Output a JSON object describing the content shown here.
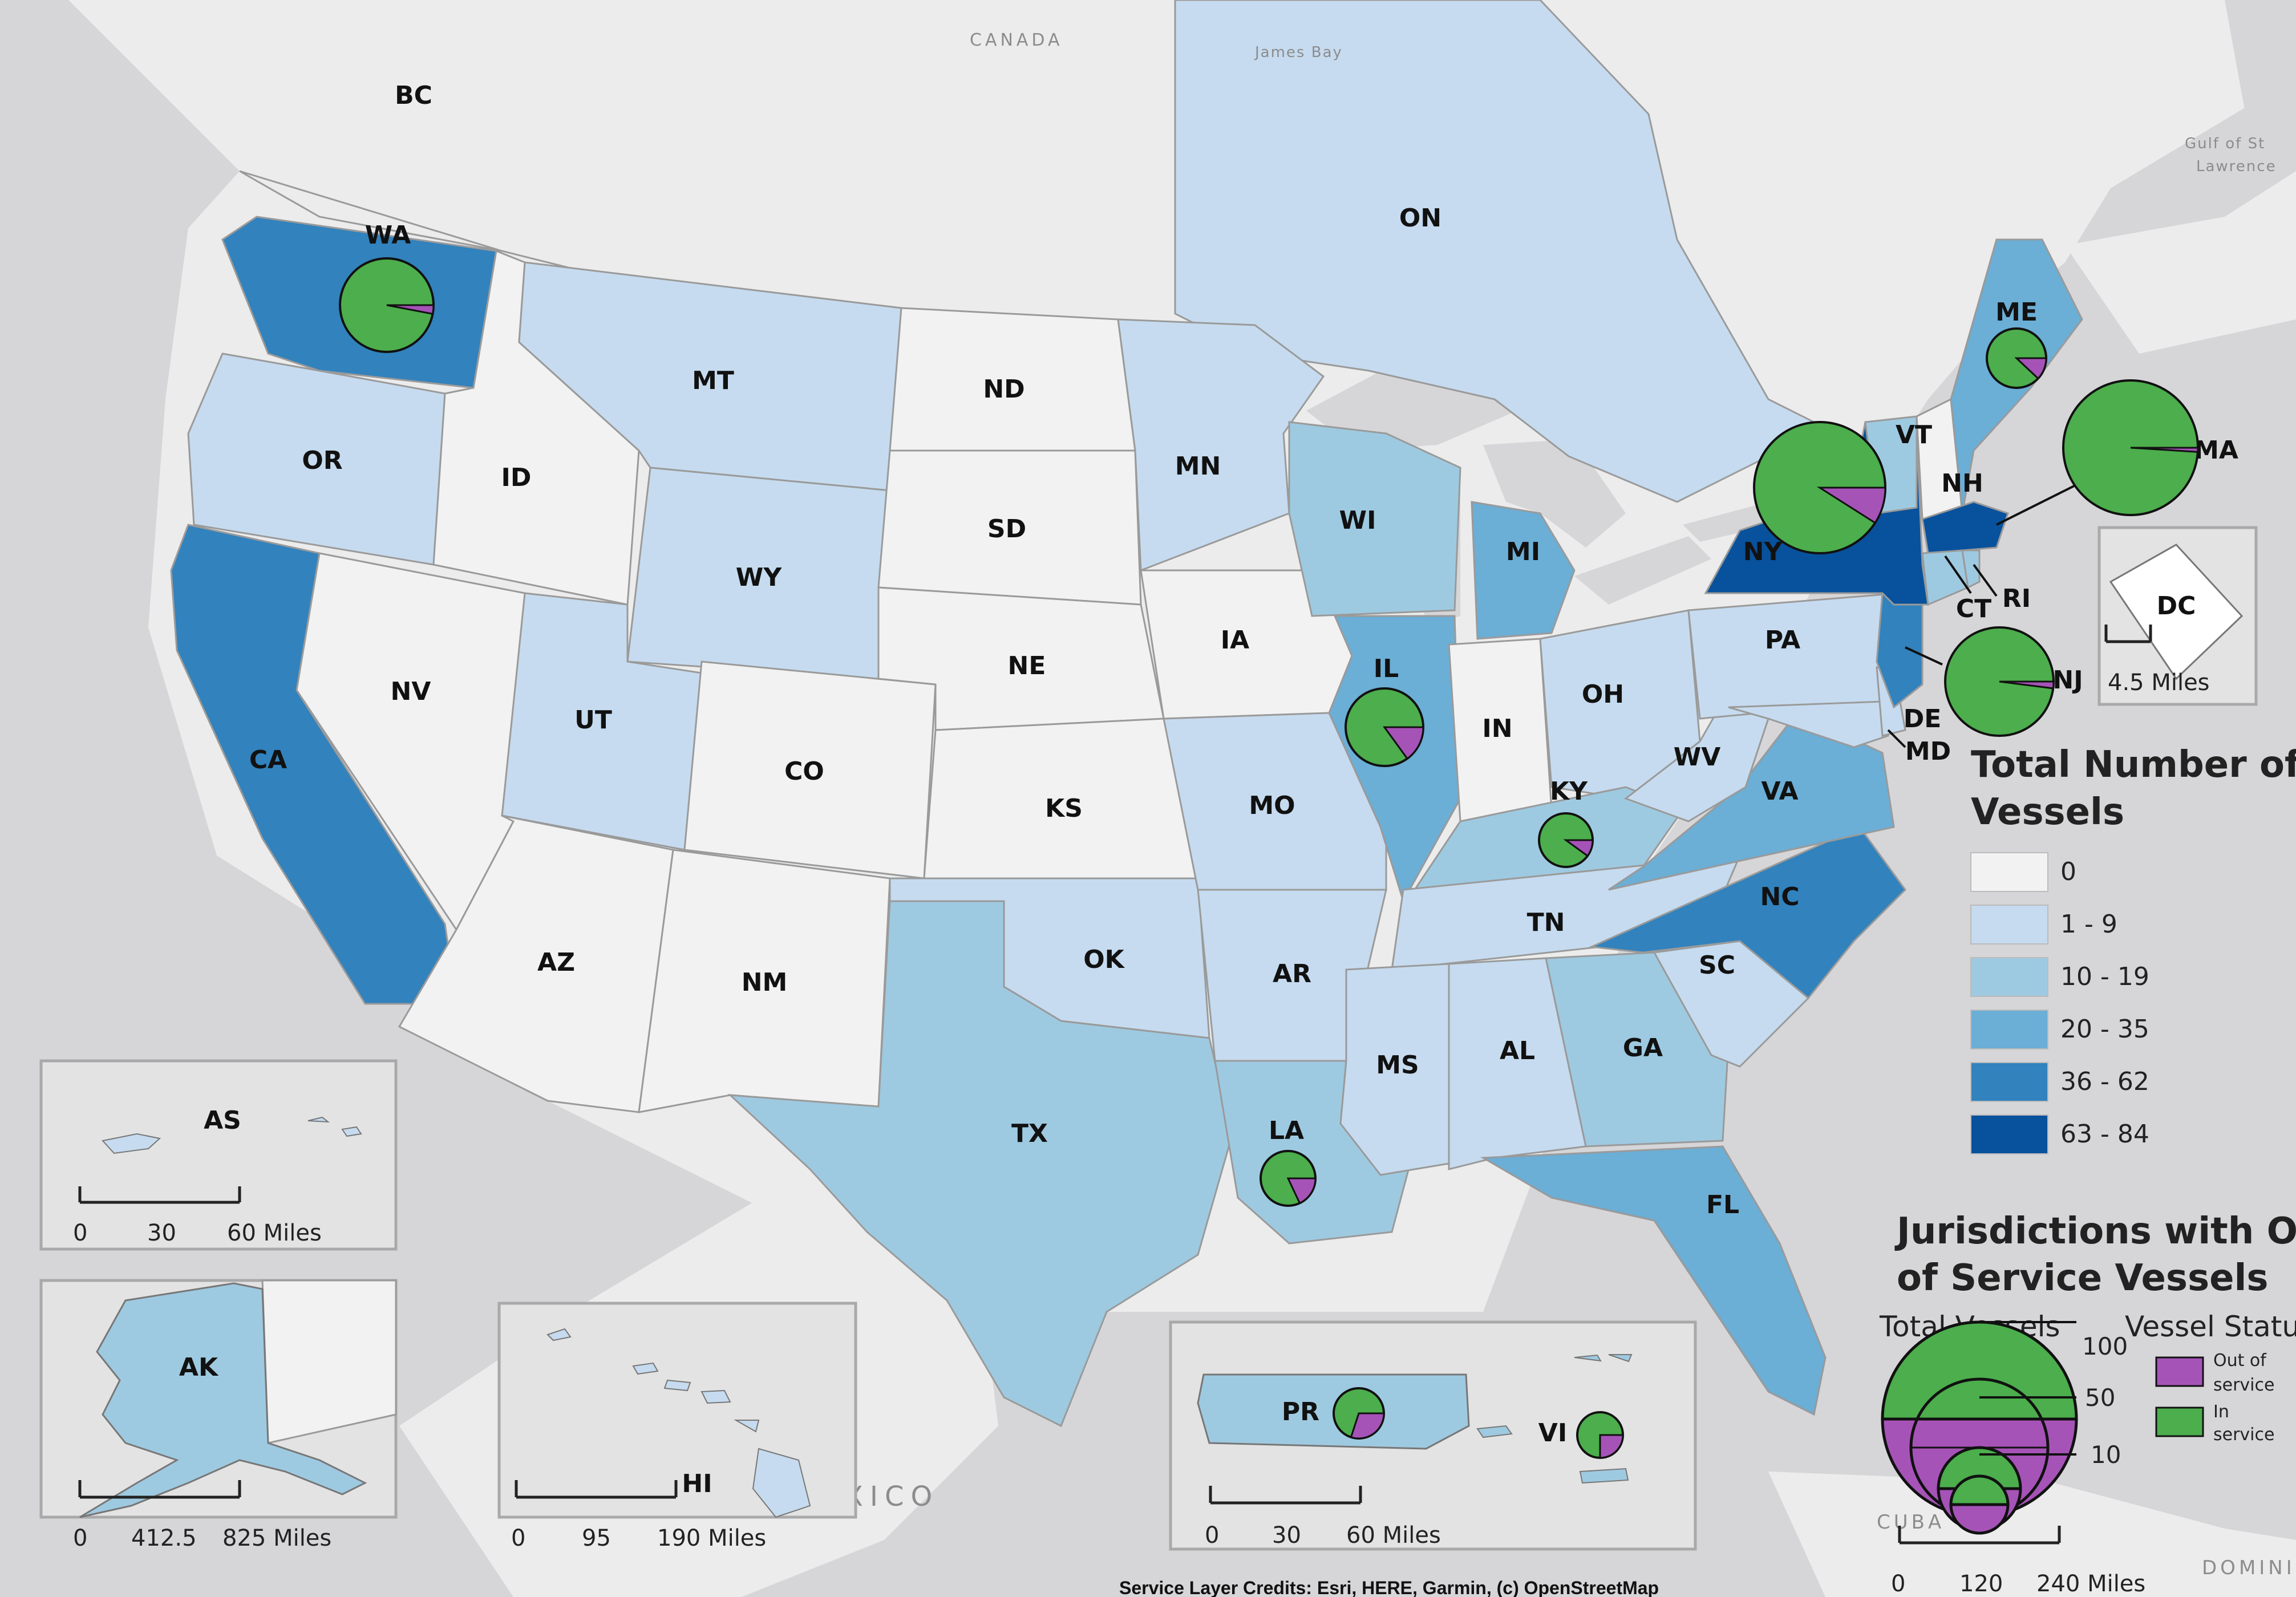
{
  "colors": {
    "ocean": "#d6d6d8",
    "land": "#ececec",
    "c0": "#f2f2f2",
    "c1": "#c6dbef",
    "c2": "#9ecae1",
    "c3": "#6baed6",
    "c4": "#3182bd",
    "c5": "#08519c",
    "in_service": "#4cae4c",
    "out_of_service": "#a653b8"
  },
  "geo_labels": [
    "CANADA",
    "James Bay",
    "Gulf of St",
    "Lawrence",
    "XICO",
    "CUBA",
    "DOMINIC"
  ],
  "state_labels": [
    "BC",
    "WA",
    "OR",
    "ID",
    "MT",
    "ND",
    "SD",
    "NE",
    "WY",
    "NV",
    "UT",
    "CO",
    "KS",
    "CA",
    "AZ",
    "NM",
    "OK",
    "TX",
    "MN",
    "IA",
    "MO",
    "AR",
    "LA",
    "MS",
    "AL",
    "TN",
    "KY",
    "IL",
    "IN",
    "WI",
    "MI",
    "OH",
    "PA",
    "WV",
    "VA",
    "NC",
    "SC",
    "GA",
    "FL",
    "NY",
    "VT",
    "NH",
    "ME",
    "MA",
    "CT",
    "RI",
    "NJ",
    "DE",
    "MD",
    "ON",
    "DC",
    "AS",
    "AK",
    "HI",
    "PR",
    "VI"
  ],
  "insets": {
    "as": {
      "label": "AS",
      "scale": [
        "0",
        "30",
        "60 Miles"
      ]
    },
    "ak": {
      "label": "AK",
      "scale": [
        "0",
        "412.5",
        "825 Miles"
      ]
    },
    "hi": {
      "label": "HI",
      "scale": [
        "0",
        "95",
        "190 Miles"
      ]
    },
    "pr_vi": {
      "scale": [
        "0",
        "30",
        "60 Miles"
      ]
    },
    "dc": {
      "label": "DC",
      "scale": "4.5 Miles"
    }
  },
  "main_scale": [
    "0",
    "120",
    "240 Miles"
  ],
  "legend": {
    "title_line1": "Total Number of",
    "title_line2": "Vessels",
    "classes": [
      {
        "label": "0",
        "color": "#f2f2f2"
      },
      {
        "label": "1 - 9",
        "color": "#c6dbef"
      },
      {
        "label": "10 - 19",
        "color": "#9ecae1"
      },
      {
        "label": "20 - 35",
        "color": "#6baed6"
      },
      {
        "label": "36 - 62",
        "color": "#3182bd"
      },
      {
        "label": "63 - 84",
        "color": "#08519c"
      }
    ]
  },
  "pie_legend": {
    "title_line1": "Jurisdictions with Out",
    "title_line2": "of Service Vessels",
    "total_title": "Total Vessels",
    "status_title": "Vessel Status",
    "sizes": [
      "100",
      "50",
      "10"
    ],
    "out_label_1": "Out of",
    "out_label_2": "service",
    "in_label_1": "In",
    "in_label_2": "service"
  },
  "credits": "Service Layer Credits: Esri, HERE, Garmin, (c) OpenStreetMap",
  "jurisdictions_out_of_service": [
    {
      "state": "WA",
      "out_of_service_fraction": 0.03
    },
    {
      "state": "ME",
      "out_of_service_fraction": 0.12
    },
    {
      "state": "NY",
      "out_of_service_fraction": 0.09
    },
    {
      "state": "MA",
      "out_of_service_fraction": 0.01
    },
    {
      "state": "NJ",
      "out_of_service_fraction": 0.02
    },
    {
      "state": "IL",
      "out_of_service_fraction": 0.15
    },
    {
      "state": "KY",
      "out_of_service_fraction": 0.1
    },
    {
      "state": "LA",
      "out_of_service_fraction": 0.18
    },
    {
      "state": "PR",
      "out_of_service_fraction": 0.3
    },
    {
      "state": "VI",
      "out_of_service_fraction": 0.25
    }
  ]
}
